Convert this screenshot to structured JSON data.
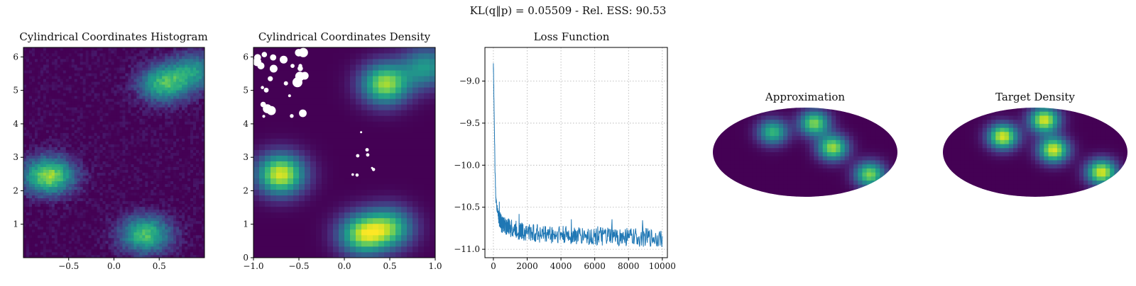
{
  "suptitle": "KL(q‖p) = 0.05509 - Rel. ESS: 90.53",
  "chart_data": [
    {
      "type": "heatmap",
      "title": "Cylindrical Coordinates Histogram",
      "xlim": [
        -1,
        1
      ],
      "ylim": [
        0,
        6.283
      ],
      "xticks": [
        "−0.5",
        "0.0",
        "0.5"
      ],
      "yticks": [
        "1",
        "2",
        "3",
        "4",
        "5",
        "6"
      ],
      "colormap": "viridis",
      "modes": [
        {
          "x": -0.72,
          "y": 2.45,
          "weight": 0.9
        },
        {
          "x": 0.35,
          "y": 0.7,
          "weight": 0.75
        },
        {
          "x": 0.55,
          "y": 5.2,
          "weight": 0.7
        },
        {
          "x": 0.9,
          "y": 5.6,
          "weight": 0.5
        }
      ]
    },
    {
      "type": "heatmap",
      "title": "Cylindrical Coordinates Density",
      "xlim": [
        -1,
        1
      ],
      "ylim": [
        0,
        6.283
      ],
      "xticks": [
        "−1.0",
        "−0.5",
        "0.0",
        "0.5",
        "1.0"
      ],
      "yticks": [
        "0",
        "1",
        "2",
        "3",
        "4",
        "5",
        "6"
      ],
      "colormap": "viridis",
      "modes": [
        {
          "x": -0.7,
          "y": 2.5,
          "weight": 1.0
        },
        {
          "x": 0.2,
          "y": 0.7,
          "weight": 0.85
        },
        {
          "x": 0.5,
          "y": 0.9,
          "weight": 0.7
        },
        {
          "x": 0.45,
          "y": 5.2,
          "weight": 0.9
        },
        {
          "x": 0.9,
          "y": 5.7,
          "weight": 0.55
        }
      ]
    },
    {
      "type": "line",
      "title": "Loss Function",
      "xlim": [
        -500,
        10300
      ],
      "ylim": [
        -11.1,
        -8.6
      ],
      "xticks": [
        0,
        2000,
        4000,
        6000,
        8000,
        10000
      ],
      "yticks": [
        -9.0,
        -9.5,
        -10.0,
        -10.5,
        -11.0
      ],
      "ytick_labels": [
        "−9.0",
        "−9.5",
        "−10.0",
        "−10.5",
        "−11.0"
      ],
      "grid": true,
      "color": "#1f77b4",
      "series": [
        {
          "x": [
            0,
            50,
            100,
            150,
            200,
            300,
            400,
            500,
            700,
            1000,
            1500,
            2000,
            3000,
            4000,
            5000,
            6000,
            7000,
            8000,
            9000,
            10000
          ],
          "y": [
            -8.8,
            -9.4,
            -10.1,
            -10.4,
            -10.5,
            -10.6,
            -10.65,
            -10.7,
            -10.72,
            -10.75,
            -10.78,
            -10.8,
            -10.82,
            -10.83,
            -10.84,
            -10.85,
            -10.85,
            -10.86,
            -10.86,
            -10.87
          ]
        }
      ]
    },
    {
      "type": "heatmap",
      "title": "Approximation",
      "projection": "mollweide",
      "colormap": "viridis",
      "modes": [
        {
          "x": -0.35,
          "y": 0.45,
          "weight": 0.7
        },
        {
          "x": 0.1,
          "y": 0.65,
          "weight": 0.85
        },
        {
          "x": 0.3,
          "y": 0.1,
          "weight": 0.9
        },
        {
          "x": 0.7,
          "y": -0.5,
          "weight": 0.85
        }
      ]
    },
    {
      "type": "heatmap",
      "title": "Target Density",
      "projection": "mollweide",
      "colormap": "viridis",
      "modes": [
        {
          "x": -0.35,
          "y": 0.35,
          "weight": 1.0
        },
        {
          "x": 0.1,
          "y": 0.72,
          "weight": 1.0
        },
        {
          "x": 0.2,
          "y": 0.05,
          "weight": 1.0
        },
        {
          "x": 0.72,
          "y": -0.45,
          "weight": 1.0
        }
      ]
    }
  ]
}
